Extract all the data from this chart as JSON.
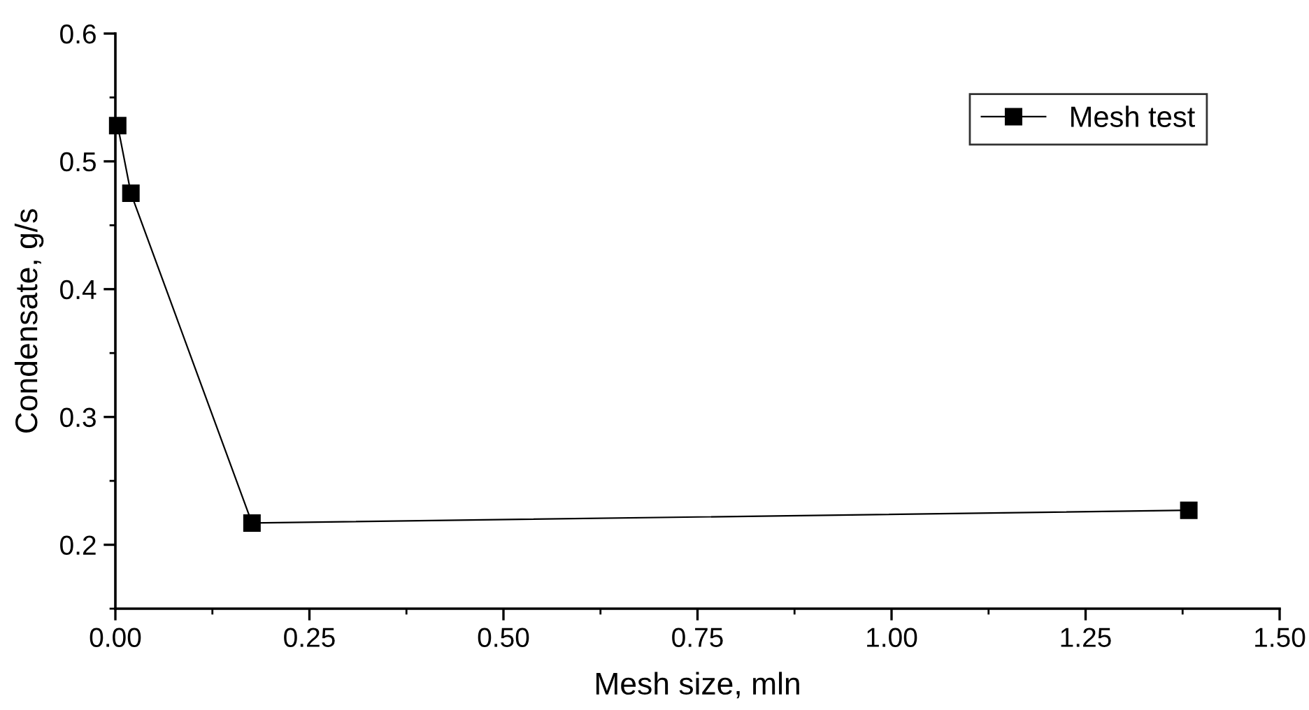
{
  "chart_data": {
    "type": "line",
    "xlabel": "Mesh size, mln",
    "ylabel": "Condensate, g/s",
    "x": [
      0.003,
      0.02,
      0.176,
      1.383
    ],
    "series": [
      {
        "name": "Mesh test",
        "color": "#000000",
        "values": [
          0.528,
          0.475,
          0.217,
          0.227
        ]
      }
    ],
    "xlim": [
      0,
      1.5
    ],
    "ylim": [
      0.15,
      0.6
    ],
    "xticks": [
      {
        "value": 0,
        "label": "0.00"
      },
      {
        "value": 0.25,
        "label": "0.25"
      },
      {
        "value": 0.5,
        "label": "0.50"
      },
      {
        "value": 0.75,
        "label": "0.75"
      },
      {
        "value": 1.0,
        "label": "1.00"
      },
      {
        "value": 1.25,
        "label": "1.25"
      },
      {
        "value": 1.5,
        "label": "1.50"
      }
    ],
    "yticks": [
      0.2,
      0.3,
      0.4,
      0.5,
      0.6
    ],
    "marker": "square",
    "line_style": "solid",
    "grid": false,
    "legend": "top right"
  }
}
